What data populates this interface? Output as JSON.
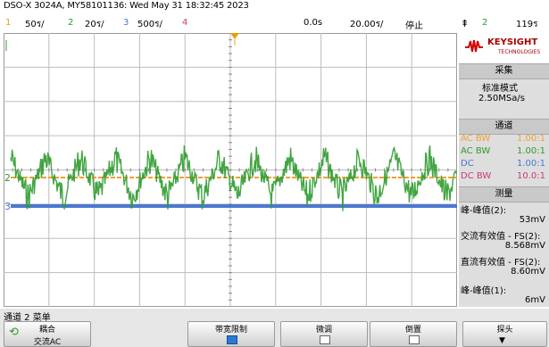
{
  "title": "DSO-X 3024A, MY58101136: Wed May 31 18:32:45 2023",
  "status_bar": {
    "ch1_num": "1",
    "ch1_scale": "50ร/",
    "ch2_num": "2",
    "ch2_scale": "20ร/",
    "ch3_num": "3",
    "ch3_scale": "500ร/",
    "ch4_num": "4",
    "time_pos": "0.0s",
    "time_scale": "20.00ร/",
    "run_state": "停止",
    "trig_num": "2",
    "trig_level": "119ร"
  },
  "brand": {
    "name": "KEYSIGHT",
    "sub": "TECHNOLOGIES"
  },
  "acquire": {
    "header": "采集",
    "mode": "标准模式",
    "rate": "2.50MSa/s"
  },
  "channels_panel": {
    "header": "通道",
    "rows": [
      {
        "coupling": "AC BW",
        "probe": "1.00:1",
        "color": "#f0a030"
      },
      {
        "coupling": "AC BW",
        "probe": "1.00:1",
        "color": "#2e9b2e"
      },
      {
        "coupling": "DC",
        "probe": "1.00:1",
        "color": "#4a78d0"
      },
      {
        "coupling": "DC BW",
        "probe": "10.0:1",
        "color": "#c83a7a"
      }
    ]
  },
  "measure_panel": {
    "header": "测量",
    "items": [
      {
        "name": "峰-峰值(2):",
        "value": "53mV"
      },
      {
        "name": "交流有效值 - FS(2):",
        "value": "8.568mV"
      },
      {
        "name": "直流有效值 - FS(2):",
        "value": "8.60mV"
      },
      {
        "name": "峰-峰值(1):",
        "value": "6mV"
      }
    ]
  },
  "menu_title": "通道 2 菜单",
  "softkeys": {
    "coupling": {
      "label": "耦合",
      "value": "交流AC"
    },
    "bw_limit": {
      "label": "带宽限制"
    },
    "fine": {
      "label": "微调"
    },
    "invert": {
      "label": "倒置"
    },
    "probe": {
      "label": "探头"
    }
  },
  "markers": {
    "ch2_ground": "2",
    "ch3_ground": "3",
    "trigger": "T"
  },
  "colors": {
    "ch1": "#f0a030",
    "ch2": "#2e9b2e",
    "ch3": "#4a78d0",
    "ch4": "#c83a7a",
    "grid": "#bdbdbd",
    "accent": "#d00000"
  }
}
